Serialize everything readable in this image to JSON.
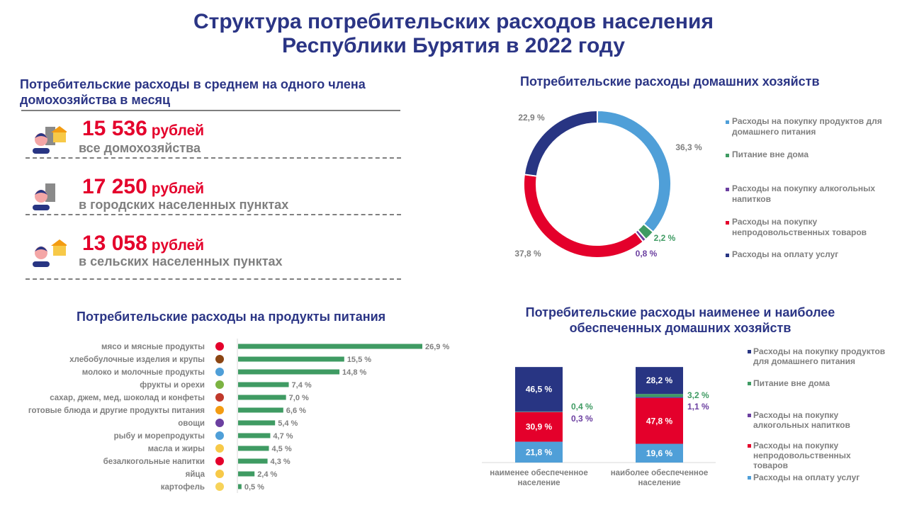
{
  "title_line1": "Структура потребительских расходов населения",
  "title_line2": "Республики Бурятия в 2022 году",
  "avg": {
    "heading": "Потребительские расходы в среднем на одного члена домохозяйства в месяц",
    "items": [
      {
        "amount": "15 536",
        "unit": "рублей",
        "label": "все домохозяйства",
        "icon": "person-city-house-icon"
      },
      {
        "amount": "17 250",
        "unit": "рублей",
        "label": "в городских населенных пунктах",
        "icon": "person-building-icon"
      },
      {
        "amount": "13 058",
        "unit": "рублей",
        "label": "в сельских населенных пунктах",
        "icon": "person-house-icon"
      }
    ]
  },
  "colors": {
    "title": "#2b3585",
    "navy": "#283583",
    "lightblue": "#4f9fd8",
    "green": "#3f9b63",
    "purple": "#6b3fa0",
    "red": "#e4002b",
    "gray": "#7f7f7f"
  },
  "chart_data": [
    {
      "type": "pie",
      "title": "Потребительские расходы домашних хозяйств",
      "donut": true,
      "legend_position": "right",
      "slices": [
        {
          "name": "Расходы на покупку продуктов для домашнего питания",
          "value": 36.3,
          "label": "36,3 %",
          "color": "#4f9fd8"
        },
        {
          "name": "Питание вне дома",
          "value": 2.2,
          "label": "2,2 %",
          "color": "#3f9b63"
        },
        {
          "name": "Расходы на покупку алкогольных напитков",
          "value": 0.8,
          "label": "0,8 %",
          "color": "#6b3fa0"
        },
        {
          "name": "Расходы на покупку непродовольственных товаров",
          "value": 37.8,
          "label": "37,8 %",
          "color": "#e4002b"
        },
        {
          "name": "Расходы на оплату услуг",
          "value": 22.9,
          "label": "22,9 %",
          "color": "#283583"
        }
      ]
    },
    {
      "type": "bar",
      "orientation": "horizontal",
      "title": "Потребительские расходы на продукты питания",
      "color": "#3f9b63",
      "categories": [
        "мясо и мясные продукты",
        "хлебобулочные изделия и крупы",
        "молоко и молочные продукты",
        "фрукты и орехи",
        "сахар, джем, мед, шоколад и конфеты",
        "готовые блюда и другие продукты питания",
        "овощи",
        "рыбу и морепродукты",
        "масла и жиры",
        "безалкогольные напитки",
        "яйца",
        "картофель"
      ],
      "values": [
        26.9,
        15.5,
        14.8,
        7.4,
        7.0,
        6.6,
        5.4,
        4.7,
        4.5,
        4.3,
        2.4,
        0.5
      ],
      "labels": [
        "26,9 %",
        "15,5 %",
        "14,8 %",
        "7,4 %",
        "7,0 %",
        "6,6 %",
        "5,4 %",
        "4,7 %",
        "4,5 %",
        "4,3 %",
        "2,4 %",
        "0,5 %"
      ],
      "icons": [
        "meat-icon",
        "bread-icon",
        "milk-icon",
        "fruit-icon",
        "sweets-icon",
        "ready-meal-icon",
        "vegetables-icon",
        "fish-icon",
        "oil-icon",
        "soft-drink-icon",
        "eggs-icon",
        "potato-icon"
      ]
    },
    {
      "type": "bar",
      "stacked": true,
      "title": "Потребительские расходы наименее и наиболее обеспеченных домашних хозяйств",
      "legend_position": "right",
      "categories": [
        "наименее обеспеченное население",
        "наиболее обеспеченное население"
      ],
      "series": [
        {
          "name": "Расходы на оплату услуг",
          "color": "#4f9fd8",
          "values": [
            21.8,
            19.6
          ],
          "labels": [
            "21,8 %",
            "19,6 %"
          ]
        },
        {
          "name": "Расходы на покупку непродовольственных товаров",
          "color": "#e4002b",
          "values": [
            30.9,
            47.8
          ],
          "labels": [
            "30,9 %",
            "47,8 %"
          ]
        },
        {
          "name": "Расходы на покупку алкогольных напитков",
          "color": "#6b3fa0",
          "values": [
            0.3,
            1.1
          ],
          "labels": [
            "0,3 %",
            "1,1 %"
          ]
        },
        {
          "name": "Питание вне дома",
          "color": "#3f9b63",
          "values": [
            0.4,
            3.2
          ],
          "labels": [
            "0,4 %",
            "3,2 %"
          ]
        },
        {
          "name": "Расходы на покупку продуктов для домашнего питания",
          "color": "#283583",
          "values": [
            46.5,
            28.2
          ],
          "labels": [
            "46,5 %",
            "28,2 %"
          ]
        }
      ],
      "legend_order": [
        4,
        3,
        2,
        1,
        0
      ]
    }
  ]
}
